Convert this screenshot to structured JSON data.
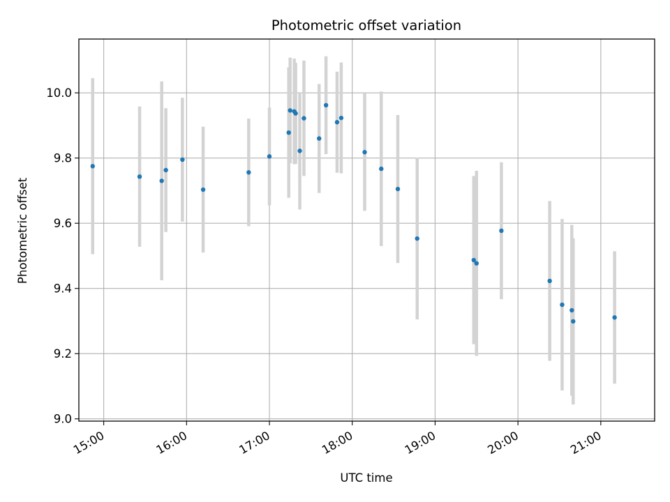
{
  "chart_data": {
    "type": "scatter",
    "title": "Photometric offset variation",
    "xlabel": "UTC time",
    "ylabel": "Photometric offset",
    "x_ticks": [
      "15:00",
      "16:00",
      "17:00",
      "18:00",
      "19:00",
      "20:00",
      "21:00"
    ],
    "y_ticks": [
      "9.0",
      "9.2",
      "9.4",
      "9.6",
      "9.8",
      "10.0"
    ],
    "xlim": [
      "14:42",
      "21:39"
    ],
    "ylim": [
      8.993,
      10.165
    ],
    "grid": true,
    "colors": {
      "point": "#1f77b4",
      "errorbar": "#d3d3d3",
      "grid": "#b0b0b0"
    },
    "points": [
      {
        "time": "14:52",
        "y": 9.775,
        "err": 0.27
      },
      {
        "time": "15:26",
        "y": 9.743,
        "err": 0.215
      },
      {
        "time": "15:42",
        "y": 9.73,
        "err": 0.305
      },
      {
        "time": "15:45",
        "y": 9.763,
        "err": 0.19
      },
      {
        "time": "15:57",
        "y": 9.795,
        "err": 0.19
      },
      {
        "time": "16:12",
        "y": 9.703,
        "err": 0.193
      },
      {
        "time": "16:45",
        "y": 9.756,
        "err": 0.165
      },
      {
        "time": "17:00",
        "y": 9.805,
        "err": 0.15
      },
      {
        "time": "17:14",
        "y": 9.878,
        "err": 0.2
      },
      {
        "time": "17:15",
        "y": 9.946,
        "err": 0.162
      },
      {
        "time": "17:18",
        "y": 9.943,
        "err": 0.162
      },
      {
        "time": "17:19",
        "y": 9.937,
        "err": 0.155
      },
      {
        "time": "17:22",
        "y": 9.822,
        "err": 0.18
      },
      {
        "time": "17:25",
        "y": 9.922,
        "err": 0.177
      },
      {
        "time": "17:36",
        "y": 9.86,
        "err": 0.167
      },
      {
        "time": "17:41",
        "y": 9.962,
        "err": 0.15
      },
      {
        "time": "17:49",
        "y": 9.91,
        "err": 0.155
      },
      {
        "time": "17:52",
        "y": 9.923,
        "err": 0.17
      },
      {
        "time": "18:09",
        "y": 9.818,
        "err": 0.18
      },
      {
        "time": "18:21",
        "y": 9.767,
        "err": 0.237
      },
      {
        "time": "18:33",
        "y": 9.705,
        "err": 0.227
      },
      {
        "time": "18:47",
        "y": 9.553,
        "err": 0.248
      },
      {
        "time": "19:28",
        "y": 9.487,
        "err": 0.258
      },
      {
        "time": "19:30",
        "y": 9.477,
        "err": 0.284
      },
      {
        "time": "19:48",
        "y": 9.577,
        "err": 0.21
      },
      {
        "time": "20:23",
        "y": 9.423,
        "err": 0.245
      },
      {
        "time": "20:32",
        "y": 9.35,
        "err": 0.263
      },
      {
        "time": "20:39",
        "y": 9.333,
        "err": 0.262
      },
      {
        "time": "20:40",
        "y": 9.299,
        "err": 0.255
      },
      {
        "time": "21:10",
        "y": 9.311,
        "err": 0.203
      }
    ]
  }
}
